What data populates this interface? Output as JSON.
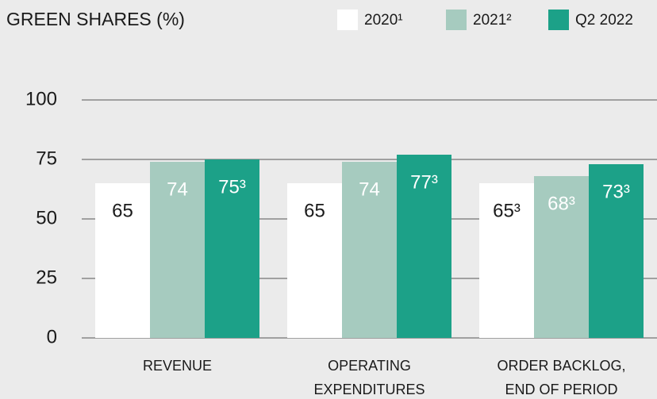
{
  "chart_data": {
    "type": "bar",
    "title": "GREEN SHARES (%)",
    "categories": [
      "REVENUE",
      "OPERATING\nEXPENDITURES",
      "ORDER BACKLOG,\nEND OF PERIOD"
    ],
    "series": [
      {
        "name": "2020¹",
        "color": "#ffffff",
        "values": [
          65,
          65,
          65
        ],
        "value_labels": [
          "65",
          "65",
          "65³"
        ]
      },
      {
        "name": "2021²",
        "color": "#a6cbbf",
        "values": [
          74,
          74,
          68
        ],
        "value_labels": [
          "74",
          "74",
          "68³"
        ]
      },
      {
        "name": "Q2 2022",
        "color": "#1ca188",
        "values": [
          75,
          77,
          73
        ],
        "value_labels": [
          "75³",
          "77³",
          "73³"
        ]
      }
    ],
    "ylim": [
      0,
      100
    ],
    "yticks": [
      0,
      25,
      50,
      75,
      100
    ],
    "grid": true,
    "legend": "top-right"
  }
}
